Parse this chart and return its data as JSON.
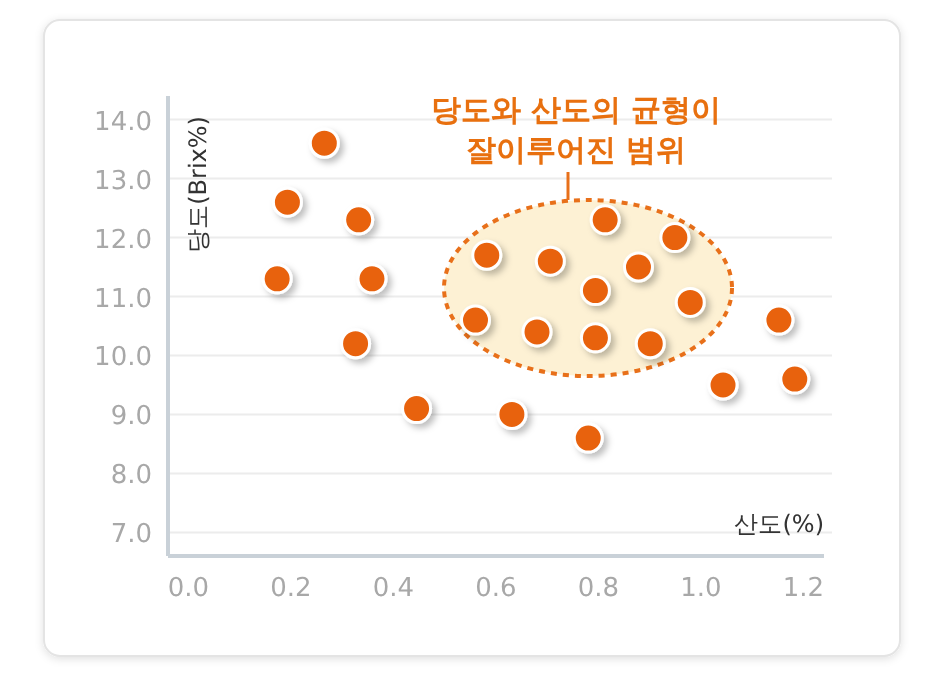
{
  "chart_data": {
    "type": "scatter",
    "xlabel": "산도(%)",
    "ylabel": "당도(Brix%)",
    "annotations": [
      "당도와 산도의 균형이\n잘이루어진 범위"
    ],
    "x": [
      0.265,
      0.193,
      0.332,
      0.173,
      0.358,
      0.326,
      0.445,
      0.631,
      0.582,
      0.56,
      0.706,
      0.813,
      0.949,
      0.878,
      0.794,
      0.979,
      0.68,
      0.794,
      0.901,
      1.152,
      1.043,
      1.183,
      0.78
    ],
    "series": [
      {
        "color": "#e8620e",
        "values": [
          13.6,
          12.6,
          12.3,
          11.3,
          11.3,
          10.2,
          9.1,
          9.0,
          11.7,
          10.6,
          11.6,
          12.3,
          12.0,
          11.5,
          11.1,
          10.9,
          10.4,
          10.3,
          10.2,
          10.6,
          9.5,
          9.6,
          8.6
        ]
      }
    ],
    "xlim": [
      -0.04,
      1.24
    ],
    "ylim": [
      6.6,
      14.4
    ],
    "xticks": [
      {
        "value": 0,
        "label": "0.0"
      },
      {
        "value": 0.2,
        "label": "0.2"
      },
      {
        "value": 0.4,
        "label": "0.4"
      },
      {
        "value": 0.6,
        "label": "0.6"
      },
      {
        "value": 0.8,
        "label": "0.8"
      },
      {
        "value": 1,
        "label": "1.0"
      },
      {
        "value": 1.2,
        "label": "1.2"
      }
    ],
    "yticks": [
      {
        "value": 7,
        "label": "7.0"
      },
      {
        "value": 8,
        "label": "8.0"
      },
      {
        "value": 9,
        "label": "9.0"
      },
      {
        "value": 10,
        "label": "10.0"
      },
      {
        "value": 11,
        "label": "11.0"
      },
      {
        "value": 12,
        "label": "12.0"
      },
      {
        "value": 13,
        "label": "13.0"
      },
      {
        "value": 14,
        "label": "14.0"
      }
    ],
    "grid": "y",
    "marker": "circle"
  }
}
